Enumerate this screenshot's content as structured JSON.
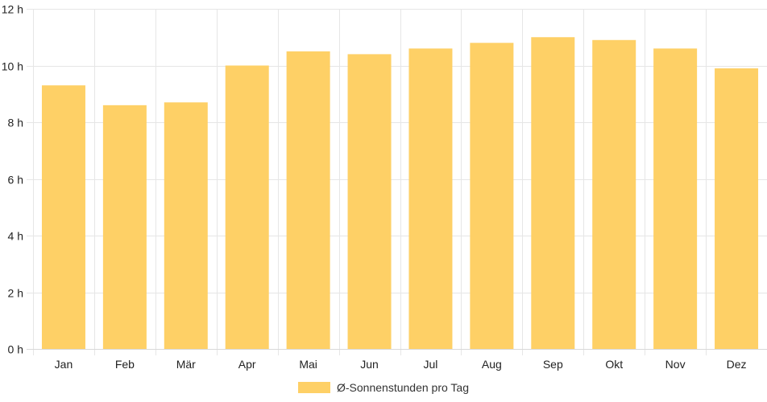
{
  "chart_data": {
    "type": "bar",
    "categories": [
      "Jan",
      "Feb",
      "Mär",
      "Apr",
      "Mai",
      "Jun",
      "Jul",
      "Aug",
      "Sep",
      "Okt",
      "Nov",
      "Dez"
    ],
    "series": [
      {
        "name": "Ø-Sonnenstunden pro Tag",
        "values": [
          9.3,
          8.6,
          8.7,
          10.0,
          10.5,
          10.4,
          10.6,
          10.8,
          11.0,
          10.9,
          10.6,
          9.9
        ],
        "color": "#fed066"
      }
    ],
    "ylim": [
      0,
      12
    ],
    "yticks": [
      0,
      2,
      4,
      6,
      8,
      10,
      12
    ],
    "ytick_suffix": " h",
    "grid": true,
    "grid_color": "#e6e6e6",
    "legend_position": "bottom-center"
  }
}
